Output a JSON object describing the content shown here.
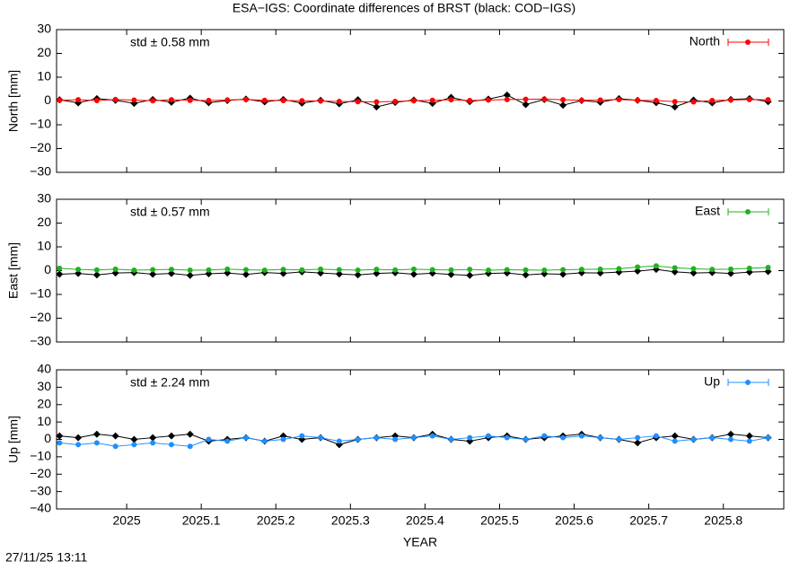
{
  "title": "ESA−IGS: Coordinate differences of BRST (black: COD−IGS)",
  "footer": "27/11/25 13:11",
  "chart_data": [
    {
      "type": "scatter",
      "y_label": "North [mm]",
      "annotation": "std ± 0.58 mm",
      "legend": "top-right",
      "x": [
        2024.91,
        2024.935,
        2024.96,
        2024.985,
        2025.01,
        2025.035,
        2025.06,
        2025.085,
        2025.11,
        2025.135,
        2025.16,
        2025.185,
        2025.21,
        2025.235,
        2025.26,
        2025.285,
        2025.31,
        2025.335,
        2025.36,
        2025.385,
        2025.41,
        2025.435,
        2025.46,
        2025.485,
        2025.51,
        2025.535,
        2025.56,
        2025.585,
        2025.61,
        2025.635,
        2025.66,
        2025.685,
        2025.71,
        2025.735,
        2025.76,
        2025.785,
        2025.81,
        2025.835,
        2025.86
      ],
      "xlim": [
        2024.906,
        2025.881
      ],
      "ylim": [
        -30,
        30
      ],
      "yticks": [
        {
          "value": -30,
          "label": "−30"
        },
        {
          "value": -20,
          "label": "−20"
        },
        {
          "value": -10,
          "label": "−10"
        },
        0,
        10,
        20,
        30
      ],
      "series": [
        {
          "color": "#000000",
          "values": [
            0.5,
            -0.8,
            1,
            0.3,
            -1,
            0.6,
            -0.5,
            1.2,
            -0.7,
            0.2,
            0.8,
            -0.4,
            0.6,
            -0.9,
            0.3,
            -1.2,
            0.5,
            -2.5,
            -0.6,
            0.4,
            -1,
            1.5,
            -0.3,
            0.8,
            2.5,
            -1.5,
            0.6,
            -1.8,
            0.2,
            -0.5,
            1,
            0.3,
            -0.7,
            -2.5,
            0.4,
            -0.8,
            0.6,
            1,
            -0.3
          ]
        },
        {
          "name": "North",
          "color": "#ff0000",
          "values": [
            0.3,
            0.5,
            0.2,
            0.6,
            0.4,
            0.1,
            0.5,
            0.3,
            0.2,
            0.4,
            0.6,
            0.3,
            0.2,
            0.1,
            0,
            -0.2,
            -0.3,
            -0.4,
            -0.2,
            0.1,
            0.3,
            0.5,
            0.2,
            0.4,
            0.6,
            0.7,
            0.8,
            0.5,
            0.3,
            0.4,
            0.6,
            0.3,
            0.2,
            -0.3,
            -0.4,
            0.2,
            0.4,
            0.6,
            0.5
          ]
        }
      ]
    },
    {
      "type": "scatter",
      "y_label": "East [mm]",
      "annotation": "std ± 0.57 mm",
      "legend": "top-right",
      "x": [
        2024.91,
        2024.935,
        2024.96,
        2024.985,
        2025.01,
        2025.035,
        2025.06,
        2025.085,
        2025.11,
        2025.135,
        2025.16,
        2025.185,
        2025.21,
        2025.235,
        2025.26,
        2025.285,
        2025.31,
        2025.335,
        2025.36,
        2025.385,
        2025.41,
        2025.435,
        2025.46,
        2025.485,
        2025.51,
        2025.535,
        2025.56,
        2025.585,
        2025.61,
        2025.635,
        2025.66,
        2025.685,
        2025.71,
        2025.735,
        2025.76,
        2025.785,
        2025.81,
        2025.835,
        2025.86
      ],
      "xlim": [
        2024.906,
        2025.881
      ],
      "ylim": [
        -30,
        30
      ],
      "yticks": [
        {
          "value": -30,
          "label": "−30"
        },
        {
          "value": -20,
          "label": "−20"
        },
        {
          "value": -10,
          "label": "−10"
        },
        0,
        10,
        20,
        30
      ],
      "series": [
        {
          "color": "#000000",
          "values": [
            -1.5,
            -1.2,
            -1.8,
            -1,
            -0.8,
            -1.5,
            -1.2,
            -2,
            -1.3,
            -1,
            -1.6,
            -0.8,
            -1.2,
            -0.5,
            -1,
            -1.4,
            -1.8,
            -1.2,
            -0.9,
            -1.5,
            -1.1,
            -1.6,
            -2,
            -1.2,
            -1,
            -1.8,
            -1.3,
            -1.5,
            -0.9,
            -1,
            -0.6,
            -0.2,
            0.5,
            -0.5,
            -1,
            -0.8,
            -1.2,
            -0.6,
            -0.4
          ]
        },
        {
          "name": "East",
          "color": "#22b022",
          "values": [
            1,
            0.5,
            0.3,
            0.6,
            0.2,
            0.4,
            0.5,
            0.2,
            0.3,
            0.6,
            0.4,
            0.2,
            0.5,
            0.3,
            0.6,
            0.4,
            0.2,
            0.5,
            0.3,
            0.6,
            0.4,
            0.3,
            0.5,
            0.2,
            0.4,
            0.3,
            0.2,
            0.4,
            0.5,
            0.6,
            0.8,
            1.5,
            2,
            1.2,
            0.8,
            0.5,
            0.6,
            1,
            1.3
          ]
        }
      ]
    },
    {
      "type": "scatter",
      "y_label": "Up [mm]",
      "x_label": "YEAR",
      "annotation": "std ± 2.24 mm",
      "legend": "top-right",
      "x": [
        2024.91,
        2024.935,
        2024.96,
        2024.985,
        2025.01,
        2025.035,
        2025.06,
        2025.085,
        2025.11,
        2025.135,
        2025.16,
        2025.185,
        2025.21,
        2025.235,
        2025.26,
        2025.285,
        2025.31,
        2025.335,
        2025.36,
        2025.385,
        2025.41,
        2025.435,
        2025.46,
        2025.485,
        2025.51,
        2025.535,
        2025.56,
        2025.585,
        2025.61,
        2025.635,
        2025.66,
        2025.685,
        2025.71,
        2025.735,
        2025.76,
        2025.785,
        2025.81,
        2025.835,
        2025.86
      ],
      "xlim": [
        2024.906,
        2025.881
      ],
      "ylim": [
        -40,
        40
      ],
      "xticks": [
        2025,
        2025.1,
        2025.2,
        2025.3,
        2025.4,
        2025.5,
        2025.6,
        2025.7,
        2025.8
      ],
      "yticks": [
        {
          "value": -40,
          "label": "−40"
        },
        {
          "value": -30,
          "label": "−30"
        },
        {
          "value": -20,
          "label": "−20"
        },
        {
          "value": -10,
          "label": "−10"
        },
        0,
        10,
        20,
        30,
        40
      ],
      "series": [
        {
          "color": "#000000",
          "values": [
            2,
            1,
            3,
            2,
            0,
            1,
            2,
            3,
            -1,
            0,
            1,
            -1,
            2,
            0,
            1,
            -3,
            0,
            1,
            2,
            1,
            3,
            0,
            -1,
            1,
            2,
            0,
            1,
            2,
            3,
            1,
            0,
            -2,
            1,
            2,
            0,
            1,
            3,
            2,
            1
          ]
        },
        {
          "name": "Up",
          "color": "#1e8fff",
          "values": [
            -2,
            -3,
            -2,
            -4,
            -3,
            -2,
            -3,
            -4,
            0,
            -1,
            1,
            -1,
            0,
            2,
            1,
            -1,
            0,
            1,
            0,
            1,
            2,
            0,
            1,
            2,
            1,
            0,
            2,
            1,
            2,
            1,
            0,
            1,
            2,
            -1,
            0,
            1,
            0,
            -1,
            1
          ]
        }
      ]
    }
  ]
}
